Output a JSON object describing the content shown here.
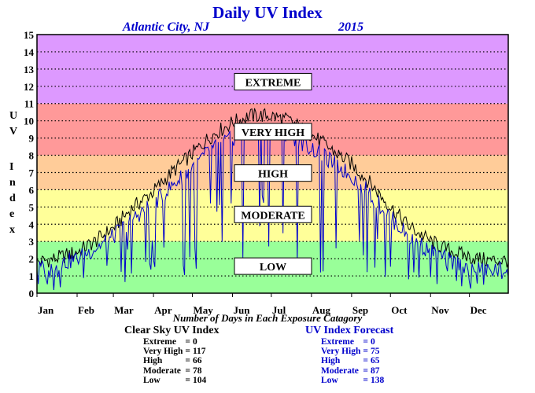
{
  "title": "Daily UV Index",
  "location": "Atlantic City, NJ",
  "year": "2015",
  "y_axis_label": [
    "U",
    "V",
    "",
    "I",
    "n",
    "d",
    "e",
    "x"
  ],
  "footer_note": "Number of Days in Each Exposure Catagory",
  "colors": {
    "low": "#99ff99",
    "moderate": "#ffff99",
    "high": "#ffcc99",
    "very_high": "#ff9999",
    "extreme": "#dd99ff",
    "clear_sky_line": "#000000",
    "forecast_line": "#0000cc"
  },
  "clear_sky_summary": {
    "heading": "Clear Sky UV Index",
    "rows": [
      {
        "label": "Extreme",
        "eq": "=",
        "value": "0"
      },
      {
        "label": "Very High",
        "eq": "=",
        "value": "117"
      },
      {
        "label": "High",
        "eq": "=",
        "value": "66"
      },
      {
        "label": "Moderate",
        "eq": "=",
        "value": "78"
      },
      {
        "label": "Low",
        "eq": "=",
        "value": "104"
      }
    ]
  },
  "forecast_summary": {
    "heading": "UV Index Forecast",
    "rows": [
      {
        "label": "Extreme",
        "eq": "=",
        "value": "0"
      },
      {
        "label": "Very High",
        "eq": "=",
        "value": "75"
      },
      {
        "label": "High",
        "eq": "=",
        "value": "65"
      },
      {
        "label": "Moderate",
        "eq": "=",
        "value": "87"
      },
      {
        "label": "Low",
        "eq": "=",
        "value": "138"
      }
    ]
  },
  "chart_data": {
    "type": "line",
    "title": "Daily UV Index",
    "xlabel": "",
    "ylabel": "UV Index",
    "ylim": [
      0,
      15
    ],
    "yticks": [
      0,
      1,
      2,
      3,
      4,
      5,
      6,
      7,
      8,
      9,
      10,
      11,
      12,
      13,
      14,
      15
    ],
    "xlim": [
      1,
      365
    ],
    "month_labels": [
      "Jan",
      "Feb",
      "Mar",
      "Apr",
      "May",
      "Jun",
      "Jul",
      "Aug",
      "Sep",
      "Oct",
      "Nov",
      "Dec"
    ],
    "month_start_day": [
      1,
      32,
      60,
      91,
      121,
      152,
      182,
      213,
      244,
      274,
      305,
      335
    ],
    "grid": true,
    "bands": [
      {
        "name": "LOW",
        "from": 0,
        "to": 3
      },
      {
        "name": "MODERATE",
        "from": 3,
        "to": 6
      },
      {
        "name": "HIGH",
        "from": 6,
        "to": 8
      },
      {
        "name": "VERY HIGH",
        "from": 8,
        "to": 11
      },
      {
        "name": "EXTREME",
        "from": 11,
        "to": 15
      }
    ],
    "band_labels": [
      {
        "text": "EXTREME",
        "y": 12.2
      },
      {
        "text": "VERY HIGH",
        "y": 9.3
      },
      {
        "text": "HIGH",
        "y": 6.9
      },
      {
        "text": "MODERATE",
        "y": 4.5
      },
      {
        "text": "LOW",
        "y": 1.5
      }
    ],
    "series": [
      {
        "name": "Clear Sky UV Index",
        "x": [
          1,
          15,
          32,
          46,
          60,
          74,
          91,
          105,
          121,
          135,
          152,
          166,
          182,
          196,
          213,
          227,
          244,
          258,
          274,
          288,
          305,
          319,
          335,
          349,
          365
        ],
        "values": [
          1.8,
          2.0,
          2.4,
          3.0,
          3.8,
          4.9,
          5.9,
          7.0,
          8.1,
          9.1,
          9.9,
          10.3,
          10.3,
          10.0,
          9.2,
          8.4,
          7.5,
          6.4,
          5.0,
          3.9,
          3.0,
          2.5,
          2.1,
          1.9,
          1.9
        ]
      },
      {
        "name": "UV Index Forecast",
        "x": [
          1,
          15,
          32,
          46,
          60,
          74,
          91,
          105,
          121,
          135,
          152,
          166,
          182,
          196,
          213,
          227,
          244,
          258,
          274,
          288,
          305,
          319,
          335,
          349,
          365
        ],
        "values": [
          1.4,
          1.6,
          2.0,
          2.6,
          3.3,
          4.3,
          5.2,
          6.2,
          7.3,
          8.3,
          9.0,
          9.4,
          9.5,
          9.2,
          8.4,
          7.7,
          6.8,
          5.8,
          4.4,
          3.3,
          2.4,
          1.9,
          1.5,
          1.3,
          1.4
        ]
      }
    ]
  }
}
